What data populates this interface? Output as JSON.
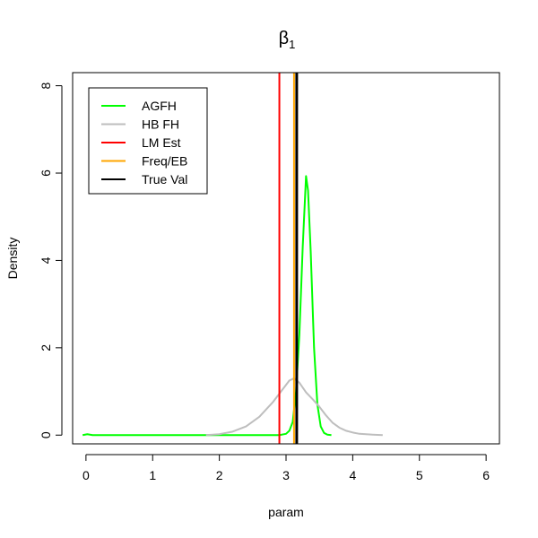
{
  "chart_data": {
    "type": "line",
    "title": "β",
    "title_subscript": "1",
    "xlabel": "param",
    "ylabel": "Density",
    "xlim": [
      -0.2,
      6.2
    ],
    "ylim": [
      -0.2,
      8.3
    ],
    "x_ticks": [
      0,
      1,
      2,
      3,
      4,
      5,
      6
    ],
    "y_ticks": [
      0,
      2,
      4,
      6,
      8
    ],
    "grid": false,
    "legend_position": "top-left",
    "series": [
      {
        "name": "AGFH",
        "kind": "density",
        "color": "#00ff00",
        "points": [
          [
            -0.05,
            0
          ],
          [
            0.02,
            0.02
          ],
          [
            0.1,
            0
          ],
          [
            0.5,
            0
          ],
          [
            1.0,
            0
          ],
          [
            1.5,
            0
          ],
          [
            2.0,
            0
          ],
          [
            2.5,
            0
          ],
          [
            2.8,
            0
          ],
          [
            2.9,
            0
          ],
          [
            3.0,
            0.03
          ],
          [
            3.05,
            0.1
          ],
          [
            3.1,
            0.3
          ],
          [
            3.15,
            1.0
          ],
          [
            3.2,
            2.3
          ],
          [
            3.25,
            4.3
          ],
          [
            3.3,
            5.93
          ],
          [
            3.33,
            5.6
          ],
          [
            3.37,
            4.2
          ],
          [
            3.42,
            2.0
          ],
          [
            3.47,
            0.7
          ],
          [
            3.52,
            0.2
          ],
          [
            3.57,
            0.05
          ],
          [
            3.62,
            0.01
          ],
          [
            3.68,
            0
          ]
        ]
      },
      {
        "name": "HB FH",
        "kind": "density",
        "color": "#bebebe",
        "points": [
          [
            1.8,
            0
          ],
          [
            2.0,
            0.02
          ],
          [
            2.2,
            0.08
          ],
          [
            2.4,
            0.2
          ],
          [
            2.6,
            0.42
          ],
          [
            2.8,
            0.75
          ],
          [
            2.95,
            1.05
          ],
          [
            3.05,
            1.25
          ],
          [
            3.12,
            1.3
          ],
          [
            3.2,
            1.2
          ],
          [
            3.3,
            0.98
          ],
          [
            3.4,
            0.82
          ],
          [
            3.5,
            0.65
          ],
          [
            3.6,
            0.45
          ],
          [
            3.7,
            0.28
          ],
          [
            3.8,
            0.17
          ],
          [
            3.9,
            0.1
          ],
          [
            4.0,
            0.06
          ],
          [
            4.1,
            0.03
          ],
          [
            4.2,
            0.02
          ],
          [
            4.3,
            0.01
          ],
          [
            4.45,
            0
          ]
        ]
      },
      {
        "name": "LM Est",
        "kind": "vline",
        "color": "#ff0000",
        "x": 2.9
      },
      {
        "name": "Freq/EB",
        "kind": "vline",
        "color": "#ffa500",
        "x": 3.12
      },
      {
        "name": "True Val",
        "kind": "vline",
        "color": "#000000",
        "x": 3.16
      }
    ]
  }
}
